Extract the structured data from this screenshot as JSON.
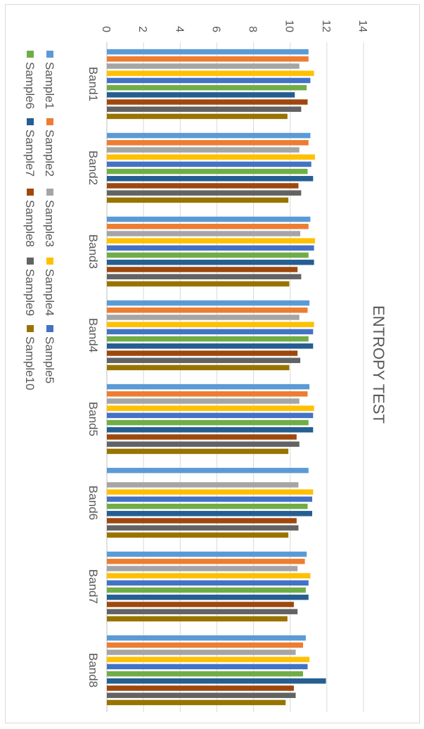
{
  "chart_data": {
    "type": "bar",
    "title": "ENTROPY TEST",
    "xlabel": "",
    "ylabel": "",
    "categories": [
      "Band1",
      "Band2",
      "Band3",
      "Band4",
      "Band5",
      "Band6",
      "Band7",
      "Band8"
    ],
    "ylim": [
      0,
      14
    ],
    "yticks": [
      "0",
      "2",
      "4",
      "6",
      "8",
      "10",
      "12",
      "14"
    ],
    "grid": true,
    "legend": "bottom",
    "series": [
      {
        "name": "Sample1",
        "color": "#5b9bd5",
        "values": [
          11.0,
          11.1,
          11.1,
          11.05,
          11.05,
          11.0,
          10.9,
          10.85
        ]
      },
      {
        "name": "Sample2",
        "color": "#ed7d31",
        "values": [
          11.0,
          11.0,
          11.0,
          10.95,
          10.95,
          0,
          10.8,
          10.7
        ]
      },
      {
        "name": "Sample3",
        "color": "#a5a5a5",
        "values": [
          10.5,
          10.5,
          10.55,
          10.5,
          10.5,
          10.45,
          10.4,
          10.3
        ]
      },
      {
        "name": "Sample4",
        "color": "#ffc000",
        "values": [
          11.3,
          11.35,
          11.35,
          11.3,
          11.3,
          11.25,
          11.1,
          11.05
        ]
      },
      {
        "name": "Sample5",
        "color": "#4472c4",
        "values": [
          11.1,
          11.15,
          11.3,
          11.25,
          11.25,
          11.2,
          11.0,
          10.95
        ]
      },
      {
        "name": "Sample6",
        "color": "#70ad47",
        "values": [
          10.9,
          10.95,
          11.0,
          11.0,
          11.0,
          10.95,
          10.85,
          10.7
        ]
      },
      {
        "name": "Sample7",
        "color": "#255e91",
        "values": [
          10.25,
          11.25,
          11.3,
          11.25,
          11.25,
          11.2,
          11.0,
          11.95
        ]
      },
      {
        "name": "Sample8",
        "color": "#9e480e",
        "values": [
          10.95,
          10.45,
          10.4,
          10.4,
          10.35,
          10.35,
          10.2,
          10.2
        ]
      },
      {
        "name": "Sample9",
        "color": "#636363",
        "values": [
          10.6,
          10.6,
          10.6,
          10.55,
          10.5,
          10.45,
          10.4,
          10.3
        ]
      },
      {
        "name": "Sample10",
        "color": "#997300",
        "values": [
          9.85,
          9.9,
          9.95,
          9.95,
          9.9,
          9.9,
          9.85,
          9.75
        ]
      }
    ]
  }
}
